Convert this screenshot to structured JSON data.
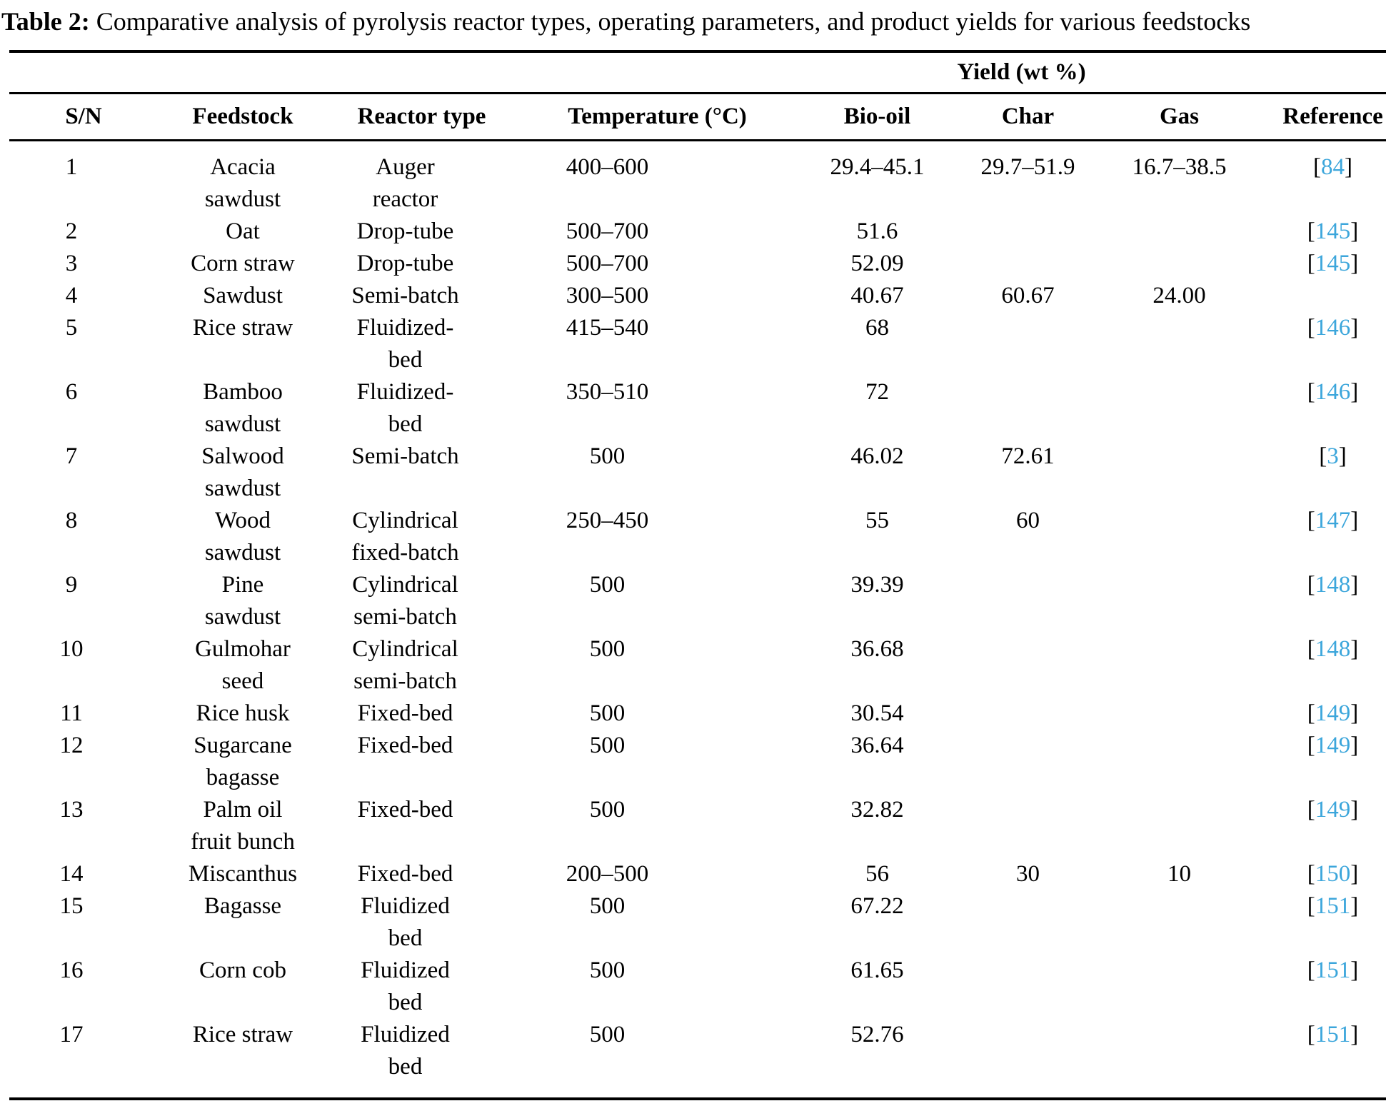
{
  "caption": {
    "label": "Table 2:",
    "text": " Comparative analysis of pyrolysis reactor types, operating parameters, and product yields for various feedstocks"
  },
  "table": {
    "yield_group_header": "Yield (wt %)",
    "columns": [
      "S/N",
      "Feedstock",
      "Reactor type",
      "Temperature (°C)",
      "Bio-oil",
      "Char",
      "Gas",
      "Reference"
    ],
    "citation_bracket_open": "[",
    "citation_bracket_close": "]",
    "citation_color": "#3CA6DB",
    "text_color": "#000000",
    "rows": [
      {
        "sn": "1",
        "feedstock": "Acacia\nsawdust",
        "reactor": "Auger\nreactor",
        "temperature": "400–600",
        "bio_oil": "29.4–45.1",
        "char": "29.7–51.9",
        "gas": "16.7–38.5",
        "reference": "84"
      },
      {
        "sn": "2",
        "feedstock": "Oat",
        "reactor": "Drop-tube",
        "temperature": "500–700",
        "bio_oil": "51.6",
        "char": "",
        "gas": "",
        "reference": "145"
      },
      {
        "sn": "3",
        "feedstock": "Corn straw",
        "reactor": "Drop-tube",
        "temperature": "500–700",
        "bio_oil": "52.09",
        "char": "",
        "gas": "",
        "reference": "145"
      },
      {
        "sn": "4",
        "feedstock": "Sawdust",
        "reactor": "Semi-batch",
        "temperature": "300–500",
        "bio_oil": "40.67",
        "char": "60.67",
        "gas": "24.00",
        "reference": ""
      },
      {
        "sn": "5",
        "feedstock": "Rice straw",
        "reactor": "Fluidized-\nbed",
        "temperature": "415–540",
        "bio_oil": "68",
        "char": "",
        "gas": "",
        "reference": "146"
      },
      {
        "sn": "6",
        "feedstock": "Bamboo\nsawdust",
        "reactor": "Fluidized-\nbed",
        "temperature": "350–510",
        "bio_oil": "72",
        "char": "",
        "gas": "",
        "reference": "146"
      },
      {
        "sn": "7",
        "feedstock": "Salwood\nsawdust",
        "reactor": "Semi-batch",
        "temperature": "500",
        "bio_oil": "46.02",
        "char": "72.61",
        "gas": "",
        "reference": "3"
      },
      {
        "sn": "8",
        "feedstock": "Wood\nsawdust",
        "reactor": "Cylindrical\nfixed-batch",
        "temperature": "250–450",
        "bio_oil": "55",
        "char": "60",
        "gas": "",
        "reference": "147"
      },
      {
        "sn": "9",
        "feedstock": "Pine\nsawdust",
        "reactor": "Cylindrical\nsemi-batch",
        "temperature": "500",
        "bio_oil": "39.39",
        "char": "",
        "gas": "",
        "reference": "148"
      },
      {
        "sn": "10",
        "feedstock": "Gulmohar\nseed",
        "reactor": "Cylindrical\nsemi-batch",
        "temperature": "500",
        "bio_oil": "36.68",
        "char": "",
        "gas": "",
        "reference": "148"
      },
      {
        "sn": "11",
        "feedstock": "Rice husk",
        "reactor": "Fixed-bed",
        "temperature": "500",
        "bio_oil": "30.54",
        "char": "",
        "gas": "",
        "reference": "149"
      },
      {
        "sn": "12",
        "feedstock": "Sugarcane\nbagasse",
        "reactor": "Fixed-bed",
        "temperature": "500",
        "bio_oil": "36.64",
        "char": "",
        "gas": "",
        "reference": "149"
      },
      {
        "sn": "13",
        "feedstock": "Palm oil\nfruit bunch",
        "reactor": "Fixed-bed",
        "temperature": "500",
        "bio_oil": "32.82",
        "char": "",
        "gas": "",
        "reference": "149"
      },
      {
        "sn": "14",
        "feedstock": "Miscanthus",
        "reactor": "Fixed-bed",
        "temperature": "200–500",
        "bio_oil": "56",
        "char": "30",
        "gas": "10",
        "reference": "150"
      },
      {
        "sn": "15",
        "feedstock": "Bagasse",
        "reactor": "Fluidized\nbed",
        "temperature": "500",
        "bio_oil": "67.22",
        "char": "",
        "gas": "",
        "reference": "151"
      },
      {
        "sn": "16",
        "feedstock": "Corn cob",
        "reactor": "Fluidized\nbed",
        "temperature": "500",
        "bio_oil": "61.65",
        "char": "",
        "gas": "",
        "reference": "151"
      },
      {
        "sn": "17",
        "feedstock": "Rice straw",
        "reactor": "Fluidized\nbed",
        "temperature": "500",
        "bio_oil": "52.76",
        "char": "",
        "gas": "",
        "reference": "151"
      }
    ]
  }
}
